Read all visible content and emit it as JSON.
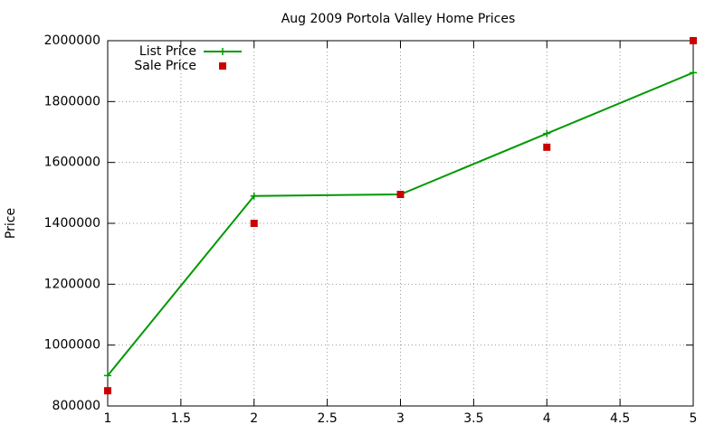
{
  "chart_data": {
    "type": "line",
    "title": "Aug 2009 Portola Valley Home Prices",
    "ylabel": "Price",
    "x": [
      1,
      2,
      3,
      4,
      5
    ],
    "series": [
      {
        "name": "List Price",
        "color": "#009900",
        "style": "linespoints",
        "values": [
          900000,
          1490000,
          1495000,
          1695000,
          1895000
        ]
      },
      {
        "name": "Sale Price",
        "color": "#cc0000",
        "style": "points",
        "values": [
          850000,
          1400000,
          1495000,
          1650000,
          2000000
        ]
      }
    ],
    "xlim": [
      1,
      5
    ],
    "xticks": [
      1,
      1.5,
      2,
      2.5,
      3,
      3.5,
      4,
      4.5,
      5
    ],
    "ylim": [
      800000,
      2000000
    ],
    "yticks": [
      800000,
      1000000,
      1200000,
      1400000,
      1600000,
      1800000,
      2000000
    ],
    "grid": true,
    "legend": "top-left"
  }
}
